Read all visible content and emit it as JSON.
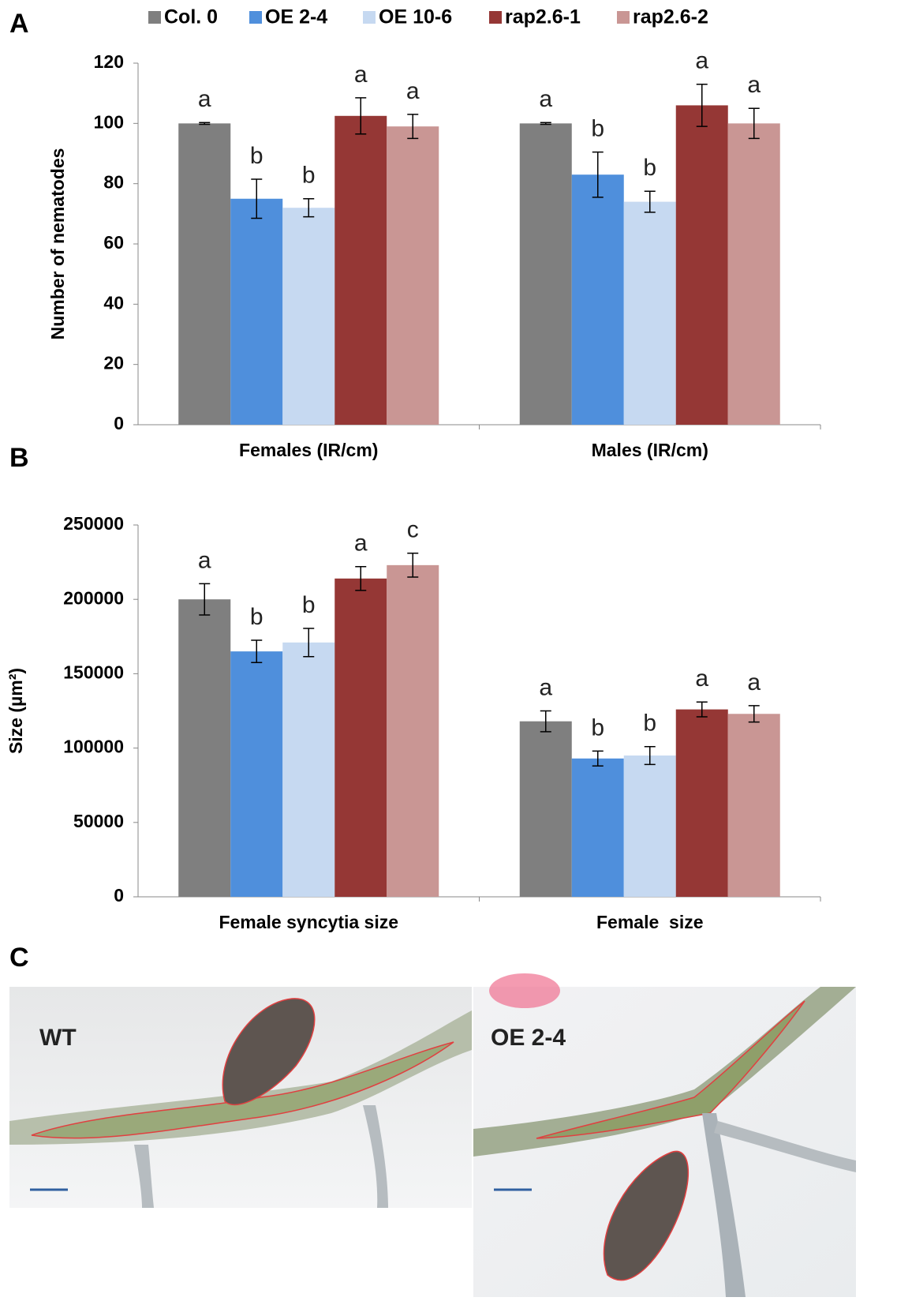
{
  "chart_data": [
    {
      "type": "bar",
      "panel": "A",
      "ylabel": "Number of nematodes",
      "categories": [
        "Females (IR/cm)",
        "Males (IR/cm)"
      ],
      "ylim": [
        0,
        120
      ],
      "yticks": [
        0,
        20,
        40,
        60,
        80,
        100,
        120
      ],
      "legend": "top",
      "series": [
        {
          "name": "Col. 0",
          "color": "#7f7f7f",
          "values": [
            100,
            100
          ],
          "errors": [
            0.3,
            0.3
          ],
          "letters": [
            "a",
            "a"
          ]
        },
        {
          "name": "OE 2-4",
          "color": "#4f8fdc",
          "values": [
            75,
            83
          ],
          "errors": [
            6.5,
            7.5
          ],
          "letters": [
            "b",
            "b"
          ]
        },
        {
          "name": "OE 10-6",
          "color": "#c6d9f1",
          "values": [
            72,
            74
          ],
          "errors": [
            3,
            3.5
          ],
          "letters": [
            "b",
            "b"
          ]
        },
        {
          "name": "rap2.6-1",
          "color": "#953735",
          "values": [
            102.5,
            106
          ],
          "errors": [
            6,
            7
          ],
          "letters": [
            "a",
            "a"
          ]
        },
        {
          "name": "rap2.6-2",
          "color": "#c99694",
          "values": [
            99,
            100
          ],
          "errors": [
            4,
            5
          ],
          "letters": [
            "a",
            "a"
          ]
        }
      ]
    },
    {
      "type": "bar",
      "panel": "B",
      "ylabel": "Size (µm²)",
      "categories": [
        "Female syncytia size",
        "Female  size"
      ],
      "ylim": [
        0,
        250000
      ],
      "yticks": [
        0,
        50000,
        100000,
        150000,
        200000,
        250000
      ],
      "series": [
        {
          "color": "#7f7f7f",
          "values": [
            200000,
            118000
          ],
          "errors": [
            10500,
            7000
          ],
          "letters": [
            "a",
            "a"
          ]
        },
        {
          "color": "#4f8fdc",
          "values": [
            165000,
            93000
          ],
          "errors": [
            7500,
            5000
          ],
          "letters": [
            "b",
            "b"
          ]
        },
        {
          "color": "#c6d9f1",
          "values": [
            171000,
            95000
          ],
          "errors": [
            9500,
            6000
          ],
          "letters": [
            "b",
            "b"
          ]
        },
        {
          "color": "#953735",
          "values": [
            214000,
            126000
          ],
          "errors": [
            8000,
            5000
          ],
          "letters": [
            "a",
            "a"
          ]
        },
        {
          "color": "#c99694",
          "values": [
            223000,
            123000
          ],
          "errors": [
            8000,
            5500
          ],
          "letters": [
            "c",
            "a"
          ]
        }
      ]
    }
  ],
  "photos": {
    "panel": "C",
    "left_label": "WT",
    "right_label": "OE 2-4"
  }
}
